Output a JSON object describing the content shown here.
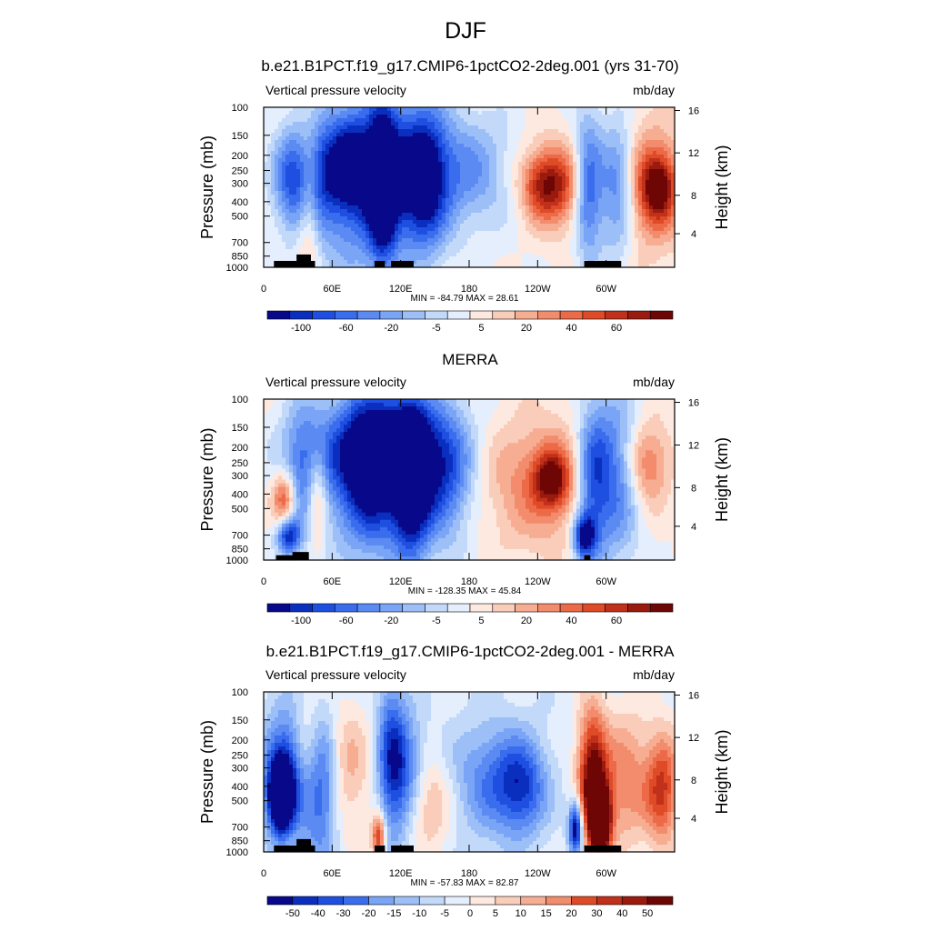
{
  "title": "DJF",
  "colors": {
    "scale": [
      "#08088a",
      "#0a2fbf",
      "#1f4fe0",
      "#3a6ded",
      "#5a8af2",
      "#7aa4f5",
      "#9cbff7",
      "#c3d9fa",
      "#e4eefd",
      "#fde9df",
      "#f9cdb9",
      "#f6ad92",
      "#f28c6c",
      "#ec6a47",
      "#df4a27",
      "#c0301a",
      "#9a1a0e",
      "#6e0606"
    ],
    "land": "#000000"
  },
  "chart_data": [
    {
      "type": "heatmap",
      "title": "b.e21.B1PCT.f19_g17.CMIP6-1pctCO2-2deg.001 (yrs 31-70)",
      "left_label": "Vertical pressure velocity",
      "right_label": "mb/day",
      "ylabel": "Pressure (mb)",
      "y2label": "Height (km)",
      "yticks": [
        "100",
        "150",
        "200",
        "250",
        "300",
        "400",
        "500",
        "700",
        "850",
        "1000"
      ],
      "y2ticks": [
        "16",
        "12",
        "8",
        "4"
      ],
      "xticks": [
        "0",
        "60E",
        "120E",
        "180",
        "120W",
        "60W"
      ],
      "stats": "MIN = -84.79  MAX =  28.61",
      "colorbar_labels": [
        "-100",
        "-60",
        "-20",
        "-5",
        "5",
        "20",
        "40",
        "60"
      ],
      "grid": false
    },
    {
      "type": "heatmap",
      "title": "MERRA",
      "left_label": "Vertical pressure velocity",
      "right_label": "mb/day",
      "ylabel": "Pressure (mb)",
      "y2label": "Height (km)",
      "yticks": [
        "100",
        "150",
        "200",
        "250",
        "300",
        "400",
        "500",
        "700",
        "850",
        "1000"
      ],
      "y2ticks": [
        "16",
        "12",
        "8",
        "4"
      ],
      "xticks": [
        "0",
        "60E",
        "120E",
        "180",
        "120W",
        "60W"
      ],
      "stats": "MIN = -128.35  MAX =  45.84",
      "colorbar_labels": [
        "-100",
        "-60",
        "-20",
        "-5",
        "5",
        "20",
        "40",
        "60"
      ],
      "grid": false
    },
    {
      "type": "heatmap",
      "title": "b.e21.B1PCT.f19_g17.CMIP6-1pctCO2-2deg.001 - MERRA",
      "left_label": "Vertical pressure velocity",
      "right_label": "mb/day",
      "ylabel": "Pressure (mb)",
      "y2label": "Height (km)",
      "yticks": [
        "100",
        "150",
        "200",
        "250",
        "300",
        "400",
        "500",
        "700",
        "850",
        "1000"
      ],
      "y2ticks": [
        "16",
        "12",
        "8",
        "4"
      ],
      "xticks": [
        "0",
        "60E",
        "120E",
        "180",
        "120W",
        "60W"
      ],
      "stats": "MIN = -57.83  MAX =  82.87",
      "colorbar_labels": [
        "-50",
        "-40",
        "-30",
        "-20",
        "-15",
        "-10",
        "-5",
        "0",
        "5",
        "10",
        "15",
        "20",
        "30",
        "40",
        "50"
      ],
      "grid": false
    }
  ]
}
